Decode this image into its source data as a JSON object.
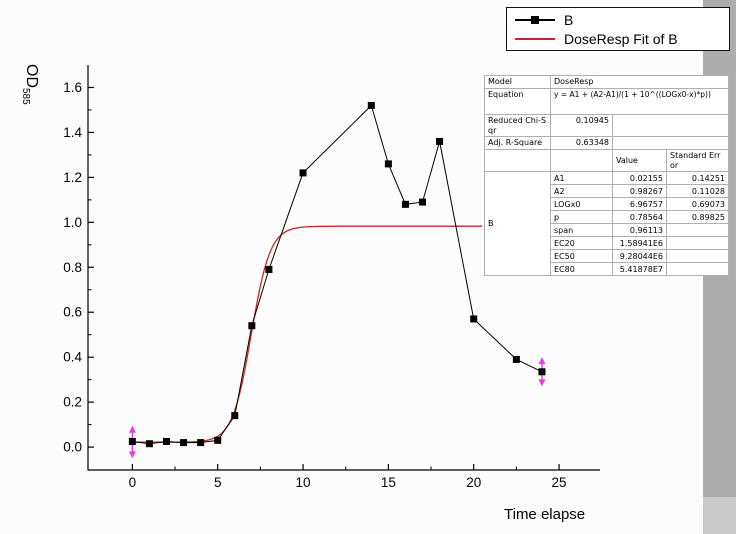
{
  "page": {
    "bg": "#fcfcfc",
    "edge_stripe": "#acacac"
  },
  "axes": {
    "y_label": "OD",
    "y_label_sub": "585",
    "x_label": "Time elapse"
  },
  "legend": {
    "entries": [
      {
        "label": "B",
        "type": "line-with-square-marker",
        "color": "#000000"
      },
      {
        "label": "DoseResp Fit of B",
        "type": "line",
        "color": "#cc2525"
      }
    ]
  },
  "chart_data": {
    "type": "scatter",
    "title": "",
    "xlabel": "Time elapse",
    "ylabel": "OD585",
    "xlim": [
      -2.6,
      27.4
    ],
    "ylim": [
      -0.102,
      1.7
    ],
    "x_ticks": [
      0,
      5,
      10,
      15,
      20,
      25
    ],
    "y_ticks": [
      0.0,
      0.2,
      0.4,
      0.6,
      0.8,
      1.0,
      1.2,
      1.4,
      1.6
    ],
    "grid": false,
    "legend_position": "top-right",
    "series": [
      {
        "name": "B",
        "color": "#000000",
        "marker": "square",
        "line": true,
        "x": [
          0,
          1,
          2,
          3,
          4,
          5,
          6,
          7,
          8,
          10,
          14,
          15,
          16,
          17,
          18,
          20,
          22.5,
          24
        ],
        "y": [
          0.025,
          0.015,
          0.025,
          0.02,
          0.02,
          0.03,
          0.14,
          0.54,
          0.79,
          1.22,
          1.52,
          1.26,
          1.08,
          1.09,
          1.36,
          0.57,
          0.39,
          0.335
        ]
      }
    ],
    "fit": {
      "name": "DoseResp Fit of B",
      "color": "#cc2525",
      "equation": "y = A1 + (A2-A1)/(1 + 10^((LOGx0-x)*p))",
      "A1": 0.02155,
      "A2": 0.98267,
      "LOGx0": 6.96757,
      "p": 0.78564,
      "x_range": [
        0,
        20.55
      ]
    },
    "error_bars": {
      "color": "#e040e0",
      "style": "double-arrow",
      "points": [
        {
          "x": 0,
          "low": -0.05,
          "high": 0.095
        },
        {
          "x": 24,
          "low": 0.27,
          "high": 0.4
        }
      ]
    }
  },
  "fit_table": {
    "rows_top": [
      {
        "label": "Model",
        "value": "DoseResp"
      },
      {
        "label": "Equation",
        "value": "y = A1 + (A2-A1)/(1 + 10^((LOGx0-x)*p))"
      },
      {
        "label": "Reduced Chi-Sqr",
        "value": "0.10945"
      },
      {
        "label": "Adj. R-Square",
        "value": "0.63348"
      }
    ],
    "header": {
      "value": "Value",
      "se": "Standard Error"
    },
    "dataset": "B",
    "params": [
      {
        "name": "A1",
        "value": "0.02155",
        "se": "0.14251"
      },
      {
        "name": "A2",
        "value": "0.98267",
        "se": "0.11028"
      },
      {
        "name": "LOGx0",
        "value": "6.96757",
        "se": "0.69073"
      },
      {
        "name": "p",
        "value": "0.78564",
        "se": "0.89825"
      },
      {
        "name": "span",
        "value": "0.96113",
        "se": ""
      },
      {
        "name": "EC20",
        "value": "1.58941E6",
        "se": ""
      },
      {
        "name": "EC50",
        "value": "9.28044E6",
        "se": ""
      },
      {
        "name": "EC80",
        "value": "5.41878E7",
        "se": ""
      }
    ]
  }
}
